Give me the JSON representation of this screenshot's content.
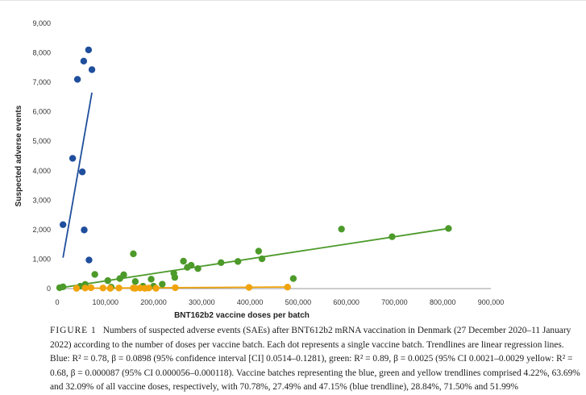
{
  "chart_data": {
    "type": "scatter",
    "title": "",
    "xlabel": "BNT162b2 vaccine doses per batch",
    "ylabel": "Suspected adverse events",
    "xlim": [
      0,
      900000
    ],
    "ylim": [
      0,
      9000
    ],
    "x_ticks": [
      "0",
      "100,000",
      "200,000",
      "300,000",
      "400,000",
      "500,000",
      "600,000",
      "700,000",
      "800,000",
      "900,000"
    ],
    "y_ticks": [
      "0",
      "1,000",
      "2,000",
      "3,000",
      "4,000",
      "5,000",
      "6,000",
      "7,000",
      "8,000",
      "9,000"
    ],
    "grid": false,
    "legend": "none",
    "series": [
      {
        "color": "#1f4e9c",
        "points": [
          [
            12000,
            2170
          ],
          [
            32000,
            4420
          ],
          [
            42000,
            7100
          ],
          [
            52000,
            3960
          ],
          [
            55000,
            7720
          ],
          [
            56000,
            1990
          ],
          [
            65000,
            8100
          ],
          [
            66000,
            970
          ],
          [
            72000,
            7430
          ]
        ],
        "trendline": [
          [
            12000,
            1050
          ],
          [
            72000,
            6650
          ]
        ]
      },
      {
        "color": "#4c9a2a",
        "points": [
          [
            5000,
            30
          ],
          [
            12000,
            60
          ],
          [
            48000,
            80
          ],
          [
            58000,
            140
          ],
          [
            78000,
            480
          ],
          [
            105000,
            270
          ],
          [
            112000,
            50
          ],
          [
            130000,
            340
          ],
          [
            138000,
            470
          ],
          [
            158000,
            1180
          ],
          [
            162000,
            240
          ],
          [
            178000,
            80
          ],
          [
            195000,
            320
          ],
          [
            200000,
            80
          ],
          [
            218000,
            150
          ],
          [
            242000,
            520
          ],
          [
            244000,
            380
          ],
          [
            262000,
            930
          ],
          [
            270000,
            720
          ],
          [
            278000,
            790
          ],
          [
            292000,
            680
          ],
          [
            340000,
            880
          ],
          [
            375000,
            920
          ],
          [
            418000,
            1270
          ],
          [
            425000,
            1010
          ],
          [
            490000,
            340
          ],
          [
            590000,
            2020
          ],
          [
            695000,
            1760
          ],
          [
            812000,
            2040
          ]
        ],
        "trendline": [
          [
            0,
            10
          ],
          [
            812000,
            2040
          ]
        ]
      },
      {
        "color": "#f0a30a",
        "points": [
          [
            40000,
            10
          ],
          [
            58000,
            20
          ],
          [
            70000,
            30
          ],
          [
            95000,
            20
          ],
          [
            110000,
            10
          ],
          [
            128000,
            20
          ],
          [
            158000,
            20
          ],
          [
            162000,
            10
          ],
          [
            172000,
            20
          ],
          [
            182000,
            10
          ],
          [
            190000,
            20
          ],
          [
            205000,
            10
          ],
          [
            245000,
            30
          ],
          [
            398000,
            40
          ],
          [
            478000,
            50
          ]
        ],
        "trendline": [
          [
            40000,
            10
          ],
          [
            480000,
            55
          ]
        ]
      }
    ]
  },
  "caption": {
    "label": "FIGURE 1",
    "text": "Numbers of suspected adverse events (SAEs) after BNT612b2 mRNA vaccination in Denmark (27 December 2020–11 January 2022) according to the number of doses per vaccine batch. Each dot represents a single vaccine batch. Trendlines are linear regression lines. Blue: R² = 0.78, β = 0.0898 (95% confidence interval [CI] 0.0514–0.1281), green: R² = 0.89, β = 0.0025 (95% CI 0.0021–0.0029 yellow: R² = 0.68, β = 0.000087 (95% CI 0.000056–0.000118). Vaccine batches representing the blue, green and yellow trendlines comprised 4.22%, 63.69% and 32.09% of all vaccine doses, respectively, with 70.78%, 27.49% and 47.15% (blue trendline), 28.84%, 71.50% and 51.99%"
  }
}
